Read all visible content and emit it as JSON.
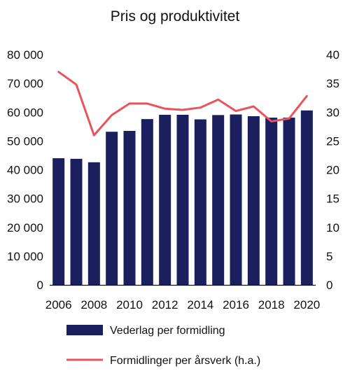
{
  "chart_data": {
    "type": "bar",
    "title": "Pris og produktivitet",
    "categories": [
      "2006",
      "2007",
      "2008",
      "2009",
      "2010",
      "2011",
      "2012",
      "2013",
      "2014",
      "2015",
      "2016",
      "2017",
      "2018",
      "2019",
      "2020"
    ],
    "x_tick_labels": [
      "2006",
      "2008",
      "2010",
      "2012",
      "2014",
      "2016",
      "2018",
      "2020"
    ],
    "y_left": {
      "ylim": [
        0,
        80000
      ],
      "tick_labels": [
        "0",
        "10 000",
        "20 000",
        "30 000",
        "40 000",
        "50 000",
        "60 000",
        "70 000",
        "80 000"
      ]
    },
    "y_right": {
      "ylim": [
        0,
        40
      ],
      "tick_labels": [
        "0",
        "5",
        "10",
        "15",
        "20",
        "25",
        "30",
        "35",
        "40"
      ]
    },
    "grid": false,
    "legend_position": "bottom",
    "series": [
      {
        "name": "Vederlag per formidling",
        "type": "bar",
        "axis": "left",
        "color": "#1b1f5e",
        "values": [
          44000,
          43800,
          42600,
          53200,
          53500,
          57600,
          59100,
          59100,
          57500,
          59000,
          59200,
          58600,
          58100,
          58100,
          60600
        ]
      },
      {
        "name": "Formidlinger per årsverk (h.a.)",
        "type": "line",
        "axis": "right",
        "color": "#e8545a",
        "values": [
          37.0,
          34.8,
          26.0,
          29.5,
          31.5,
          31.5,
          30.6,
          30.4,
          30.8,
          32.2,
          30.2,
          31.0,
          28.4,
          28.9,
          32.8
        ]
      }
    ]
  }
}
